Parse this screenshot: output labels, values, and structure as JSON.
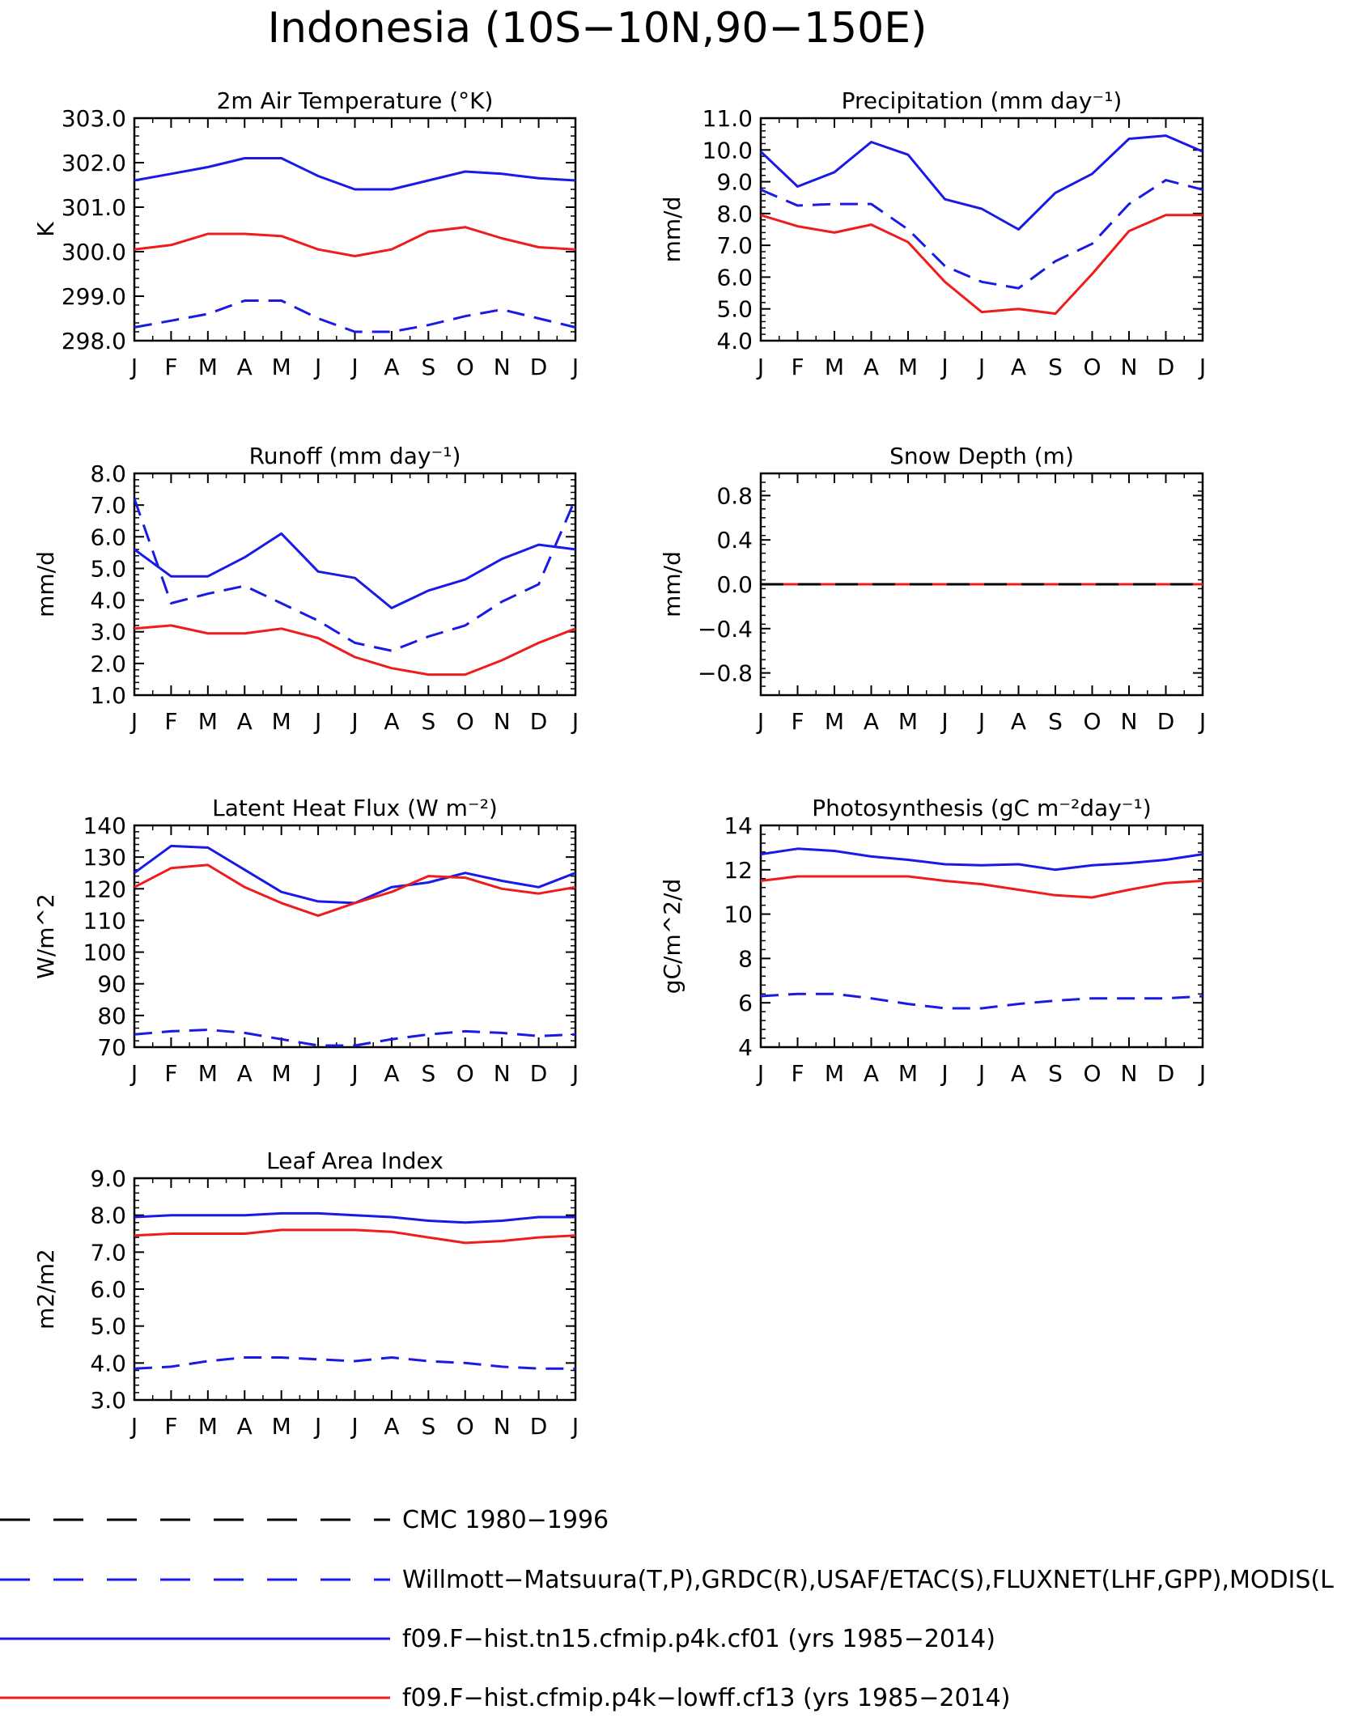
{
  "title": "Indonesia (10S−10N,90−150E)",
  "months": [
    "J",
    "F",
    "M",
    "A",
    "M",
    "J",
    "J",
    "A",
    "S",
    "O",
    "N",
    "D",
    "J"
  ],
  "colors": {
    "blue": "#1a1ae6",
    "red": "#ee1c1c",
    "black": "#000000"
  },
  "legend": [
    {
      "label": "CMC 1980−1996",
      "color": "#000000",
      "style": "dashed"
    },
    {
      "label": "Willmott−Matsuura(T,P),GRDC(R),USAF/ETAC(S),FLUXNET(LHF,GPP),MODIS(L",
      "color": "#1a1ae6",
      "style": "dashed"
    },
    {
      "label": "f09.F−hist.tn15.cfmip.p4k.cf01 (yrs 1985−2014)",
      "color": "#1a1ae6",
      "style": "solid"
    },
    {
      "label": "f09.F−hist.cfmip.p4k−lowff.cf13 (yrs 1985−2014)",
      "color": "#ee1c1c",
      "style": "solid"
    }
  ],
  "chart_data": [
    {
      "type": "line",
      "title": "2m Air Temperature (°K)",
      "ylabel": "K",
      "ylim": [
        298.0,
        303.0
      ],
      "yticks": [
        "298.0",
        "299.0",
        "300.0",
        "301.0",
        "302.0",
        "303.0"
      ],
      "x": [
        "J",
        "F",
        "M",
        "A",
        "M",
        "J",
        "J",
        "A",
        "S",
        "O",
        "N",
        "D",
        "J"
      ],
      "series": [
        {
          "key": "obs",
          "color": "#1a1ae6",
          "style": "dashed",
          "values": [
            298.3,
            298.45,
            298.6,
            298.9,
            298.9,
            298.5,
            298.2,
            298.2,
            298.35,
            298.55,
            298.7,
            298.5,
            298.3
          ]
        },
        {
          "key": "cf01",
          "color": "#1a1ae6",
          "style": "solid",
          "values": [
            301.6,
            301.75,
            301.9,
            302.1,
            302.1,
            301.7,
            301.4,
            301.4,
            301.6,
            301.8,
            301.75,
            301.65,
            301.6
          ]
        },
        {
          "key": "cf13",
          "color": "#ee1c1c",
          "style": "solid",
          "values": [
            300.05,
            300.15,
            300.4,
            300.4,
            300.35,
            300.05,
            299.9,
            300.05,
            300.45,
            300.55,
            300.3,
            300.1,
            300.05
          ]
        }
      ]
    },
    {
      "type": "line",
      "title": "Precipitation (mm day⁻¹)",
      "ylabel": "mm/d",
      "ylim": [
        4.0,
        11.0
      ],
      "yticks": [
        "4.0",
        "5.0",
        "6.0",
        "7.0",
        "8.0",
        "9.0",
        "10.0",
        "11.0"
      ],
      "x": [
        "J",
        "F",
        "M",
        "A",
        "M",
        "J",
        "J",
        "A",
        "S",
        "O",
        "N",
        "D",
        "J"
      ],
      "series": [
        {
          "key": "obs",
          "color": "#1a1ae6",
          "style": "dashed",
          "values": [
            8.75,
            8.25,
            8.3,
            8.3,
            7.5,
            6.35,
            5.85,
            5.65,
            6.5,
            7.05,
            8.3,
            9.05,
            8.75
          ]
        },
        {
          "key": "cf01",
          "color": "#1a1ae6",
          "style": "solid",
          "values": [
            9.95,
            8.85,
            9.3,
            10.25,
            9.85,
            8.45,
            8.15,
            7.5,
            8.65,
            9.25,
            10.35,
            10.45,
            9.95
          ]
        },
        {
          "key": "cf13",
          "color": "#ee1c1c",
          "style": "solid",
          "values": [
            7.95,
            7.6,
            7.4,
            7.65,
            7.1,
            5.85,
            4.9,
            5.0,
            4.85,
            6.1,
            7.45,
            7.95,
            7.95
          ]
        }
      ]
    },
    {
      "type": "line",
      "title": "Runoff (mm day⁻¹)",
      "ylabel": "mm/d",
      "ylim": [
        1.0,
        8.0
      ],
      "yticks": [
        "1.0",
        "2.0",
        "3.0",
        "4.0",
        "5.0",
        "6.0",
        "7.0",
        "8.0"
      ],
      "x": [
        "J",
        "F",
        "M",
        "A",
        "M",
        "J",
        "J",
        "A",
        "S",
        "O",
        "N",
        "D",
        "J"
      ],
      "series": [
        {
          "key": "obs",
          "color": "#1a1ae6",
          "style": "dashed",
          "values": [
            7.2,
            3.9,
            4.2,
            4.45,
            3.9,
            3.35,
            2.65,
            2.4,
            2.85,
            3.2,
            3.95,
            4.5,
            7.2
          ]
        },
        {
          "key": "cf01",
          "color": "#1a1ae6",
          "style": "solid",
          "values": [
            5.6,
            4.75,
            4.75,
            5.35,
            6.1,
            4.9,
            4.7,
            3.75,
            4.3,
            4.65,
            5.3,
            5.75,
            5.6
          ]
        },
        {
          "key": "cf13",
          "color": "#ee1c1c",
          "style": "solid",
          "values": [
            3.1,
            3.2,
            2.95,
            2.95,
            3.1,
            2.8,
            2.2,
            1.85,
            1.65,
            1.65,
            2.1,
            2.65,
            3.1
          ]
        }
      ]
    },
    {
      "type": "line",
      "title": "Snow Depth (m)",
      "ylabel": "mm/d",
      "ylim": [
        -1.0,
        1.0
      ],
      "yticks": [
        "−0.8",
        "−0.4",
        "0.0",
        "0.4",
        "0.8"
      ],
      "ytickvalues": [
        -0.8,
        -0.4,
        0.0,
        0.4,
        0.8
      ],
      "x": [
        "J",
        "F",
        "M",
        "A",
        "M",
        "J",
        "J",
        "A",
        "S",
        "O",
        "N",
        "D",
        "J"
      ],
      "series": [
        {
          "key": "obs",
          "color": "#1a1ae6",
          "style": "dashed",
          "values": [
            0,
            0,
            0,
            0,
            0,
            0,
            0,
            0,
            0,
            0,
            0,
            0,
            0
          ]
        },
        {
          "key": "cf01",
          "color": "#1a1ae6",
          "style": "solid",
          "values": [
            0,
            0,
            0,
            0,
            0,
            0,
            0,
            0,
            0,
            0,
            0,
            0,
            0
          ]
        },
        {
          "key": "cf13",
          "color": "#ee1c1c",
          "style": "solid",
          "values": [
            0,
            0,
            0,
            0,
            0,
            0,
            0,
            0,
            0,
            0,
            0,
            0,
            0
          ]
        },
        {
          "key": "cmc",
          "color": "#000000",
          "style": "dashed",
          "values": [
            0,
            0,
            0,
            0,
            0,
            0,
            0,
            0,
            0,
            0,
            0,
            0,
            0
          ]
        }
      ]
    },
    {
      "type": "line",
      "title": "Latent Heat Flux (W m⁻²)",
      "ylabel": "W/m^2",
      "ylim": [
        70,
        140
      ],
      "yticks": [
        "70",
        "80",
        "90",
        "100",
        "110",
        "120",
        "130",
        "140"
      ],
      "x": [
        "J",
        "F",
        "M",
        "A",
        "M",
        "J",
        "J",
        "A",
        "S",
        "O",
        "N",
        "D",
        "J"
      ],
      "series": [
        {
          "key": "obs",
          "color": "#1a1ae6",
          "style": "dashed",
          "values": [
            74,
            75,
            75.5,
            74.5,
            72.5,
            70.5,
            70.5,
            72.5,
            74,
            75,
            74.5,
            73.5,
            74
          ]
        },
        {
          "key": "cf01",
          "color": "#1a1ae6",
          "style": "solid",
          "values": [
            125,
            133.5,
            133,
            126,
            119,
            116,
            115.5,
            120.5,
            122,
            125,
            122.5,
            120.5,
            125
          ]
        },
        {
          "key": "cf13",
          "color": "#ee1c1c",
          "style": "solid",
          "values": [
            120.5,
            126.5,
            127.5,
            120.5,
            115.5,
            111.5,
            115.5,
            119,
            124,
            123.5,
            120,
            118.5,
            120.5
          ]
        }
      ]
    },
    {
      "type": "line",
      "title": "Photosynthesis (gC m⁻²day⁻¹)",
      "ylabel": "gC/m^2/d",
      "ylim": [
        4,
        14
      ],
      "yticks": [
        "4",
        "6",
        "8",
        "10",
        "12",
        "14"
      ],
      "x": [
        "J",
        "F",
        "M",
        "A",
        "M",
        "J",
        "J",
        "A",
        "S",
        "O",
        "N",
        "D",
        "J"
      ],
      "series": [
        {
          "key": "obs",
          "color": "#1a1ae6",
          "style": "dashed",
          "values": [
            6.3,
            6.4,
            6.4,
            6.2,
            5.95,
            5.75,
            5.75,
            5.95,
            6.1,
            6.2,
            6.2,
            6.2,
            6.3
          ]
        },
        {
          "key": "cf01",
          "color": "#1a1ae6",
          "style": "solid",
          "values": [
            12.7,
            12.95,
            12.85,
            12.6,
            12.45,
            12.25,
            12.2,
            12.25,
            12.0,
            12.2,
            12.3,
            12.45,
            12.7
          ]
        },
        {
          "key": "cf13",
          "color": "#ee1c1c",
          "style": "solid",
          "values": [
            11.5,
            11.7,
            11.7,
            11.7,
            11.7,
            11.5,
            11.35,
            11.1,
            10.85,
            10.75,
            11.1,
            11.4,
            11.5
          ]
        }
      ]
    },
    {
      "type": "line",
      "title": "Leaf Area Index",
      "ylabel": "m2/m2",
      "ylim": [
        3.0,
        9.0
      ],
      "yticks": [
        "3.0",
        "4.0",
        "5.0",
        "6.0",
        "7.0",
        "8.0",
        "9.0"
      ],
      "x": [
        "J",
        "F",
        "M",
        "A",
        "M",
        "J",
        "J",
        "A",
        "S",
        "O",
        "N",
        "D",
        "J"
      ],
      "series": [
        {
          "key": "obs",
          "color": "#1a1ae6",
          "style": "dashed",
          "values": [
            3.85,
            3.9,
            4.05,
            4.15,
            4.15,
            4.1,
            4.05,
            4.15,
            4.05,
            4.0,
            3.9,
            3.85,
            3.85
          ]
        },
        {
          "key": "cf01",
          "color": "#1a1ae6",
          "style": "solid",
          "values": [
            7.95,
            8.0,
            8.0,
            8.0,
            8.05,
            8.05,
            8.0,
            7.95,
            7.85,
            7.8,
            7.85,
            7.95,
            7.95
          ]
        },
        {
          "key": "cf13",
          "color": "#ee1c1c",
          "style": "solid",
          "values": [
            7.45,
            7.5,
            7.5,
            7.5,
            7.6,
            7.6,
            7.6,
            7.55,
            7.4,
            7.25,
            7.3,
            7.4,
            7.45
          ]
        }
      ]
    }
  ]
}
